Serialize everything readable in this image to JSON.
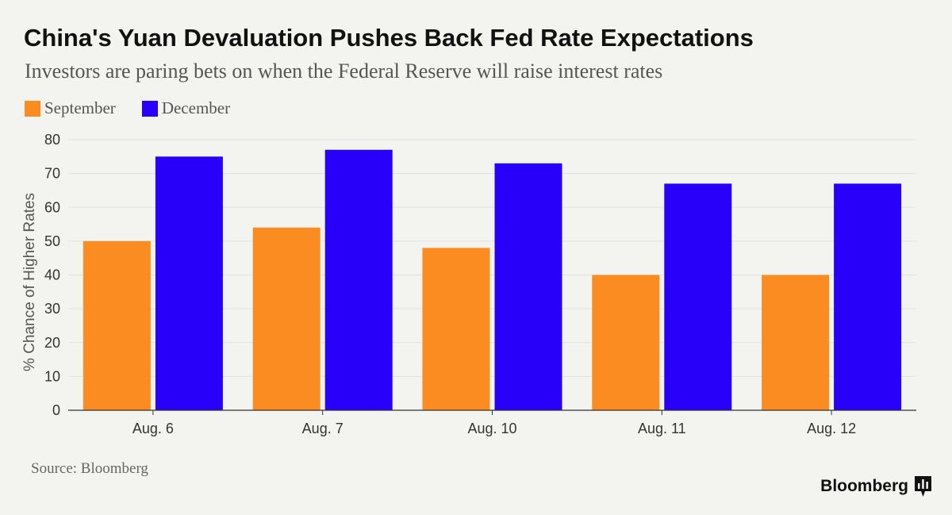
{
  "chart_data": {
    "type": "bar",
    "title": "China's Yuan Devaluation Pushes Back Fed Rate Expectations",
    "subtitle": "Investors are paring bets on when the Federal Reserve will raise interest rates",
    "xlabel": "",
    "ylabel": "% Chance of Higher Rates",
    "categories": [
      "Aug. 6",
      "Aug. 7",
      "Aug. 10",
      "Aug. 11",
      "Aug. 12"
    ],
    "series": [
      {
        "name": "September",
        "color": "#fb8c22",
        "values": [
          50,
          54,
          48,
          40,
          40
        ]
      },
      {
        "name": "December",
        "color": "#2800f9",
        "values": [
          75,
          77,
          73,
          67,
          67
        ]
      }
    ],
    "ylim": [
      0,
      80
    ],
    "yticks": [
      0,
      10,
      20,
      30,
      40,
      50,
      60,
      70,
      80
    ],
    "grid": true,
    "legend_position": "top-left",
    "source": "Source: Bloomberg"
  },
  "brand": {
    "name": "Bloomberg",
    "icon": "bloomberg-bar-chart-icon"
  }
}
